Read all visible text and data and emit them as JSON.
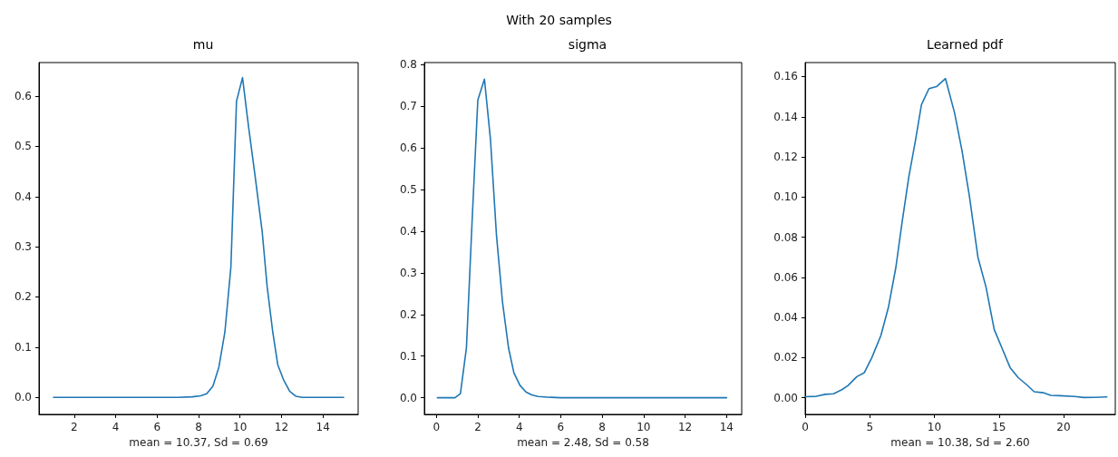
{
  "chart_data": [
    {
      "type": "line",
      "title": "mu",
      "xlabel": "mean = 10.37, Sd = 0.69",
      "annotations": [
        "With 20 samples"
      ],
      "color": "#1f77b4",
      "marker": "none",
      "line_style": "solid",
      "x": [
        1,
        2,
        3,
        4,
        5,
        6,
        7,
        7.7,
        8.1,
        8.39,
        8.69,
        8.98,
        9.27,
        9.56,
        9.83,
        10.12,
        10.41,
        10.73,
        11.07,
        11.31,
        11.58,
        11.82,
        12.1,
        12.4,
        12.7,
        13.0,
        14,
        15
      ],
      "values": [
        0,
        0,
        0,
        0,
        0,
        0,
        0,
        0.001,
        0.003,
        0.007,
        0.022,
        0.06,
        0.13,
        0.26,
        0.59,
        0.637,
        0.54,
        0.44,
        0.33,
        0.22,
        0.13,
        0.065,
        0.035,
        0.012,
        0.002,
        0,
        0,
        0
      ],
      "xlim": [
        0.3,
        15.7
      ],
      "ylim": [
        -0.034,
        0.667
      ],
      "xticks": [
        2,
        4,
        6,
        8,
        10,
        12,
        14
      ],
      "yticks": [
        {
          "value": 0,
          "label": "0.0"
        },
        0.1,
        0.2,
        0.3,
        0.4,
        0.5,
        0.6
      ]
    },
    {
      "type": "line",
      "title": "sigma",
      "xlabel": "mean = 2.48, Sd = 0.58",
      "color": "#1f77b4",
      "marker": "none",
      "line_style": "solid",
      "x": [
        0.05,
        0.9,
        1.16,
        1.45,
        1.72,
        2.0,
        2.32,
        2.61,
        2.9,
        3.19,
        3.48,
        3.74,
        4.03,
        4.32,
        4.6,
        4.9,
        5.5,
        6,
        8,
        10,
        12,
        14
      ],
      "values": [
        0,
        0,
        0.01,
        0.12,
        0.42,
        0.715,
        0.765,
        0.62,
        0.39,
        0.23,
        0.12,
        0.06,
        0.03,
        0.014,
        0.007,
        0.003,
        0.001,
        0,
        0,
        0,
        0,
        0
      ],
      "xlim": [
        -0.58,
        14.73
      ],
      "ylim": [
        -0.04,
        0.805
      ],
      "xticks": [
        0,
        2,
        4,
        6,
        8,
        10,
        12,
        14
      ],
      "yticks": [
        {
          "value": 0,
          "label": "0.0"
        },
        0.1,
        0.2,
        0.3,
        0.4,
        0.5,
        0.6,
        0.7,
        0.8
      ]
    },
    {
      "type": "line",
      "title": "Learned pdf",
      "xlabel": "mean = 10.38, Sd = 2.60",
      "color": "#1f77b4",
      "marker": "none",
      "line_style": "solid",
      "x": [
        0,
        0.86,
        1.56,
        2.2,
        2.84,
        3.3,
        4.0,
        4.58,
        5.16,
        5.86,
        6.44,
        7.02,
        7.49,
        8.02,
        8.53,
        9.0,
        9.58,
        10.16,
        10.86,
        11.56,
        12.14,
        12.72,
        13.37,
        14.0,
        14.63,
        15.28,
        15.86,
        16.49,
        17.14,
        17.72,
        18.42,
        19.0,
        19.7,
        20.86,
        21.56,
        22.37,
        23.35
      ],
      "values": [
        0.0005,
        0.0007,
        0.0017,
        0.002,
        0.004,
        0.006,
        0.0105,
        0.0125,
        0.02,
        0.031,
        0.045,
        0.065,
        0.087,
        0.11,
        0.128,
        0.146,
        0.154,
        0.155,
        0.159,
        0.142,
        0.123,
        0.1,
        0.07,
        0.055,
        0.034,
        0.024,
        0.015,
        0.01,
        0.0065,
        0.003,
        0.0025,
        0.0012,
        0.001,
        0.0006,
        0.0001,
        0.0002,
        0.0004
      ],
      "xlim": [
        0,
        24
      ],
      "ylim": [
        -0.0083,
        0.167
      ],
      "xticks": [
        0,
        5,
        10,
        15,
        20
      ],
      "yticks": [
        {
          "value": 0,
          "label": "0.00"
        },
        {
          "value": 0.02,
          "label": "0.02"
        },
        {
          "value": 0.04,
          "label": "0.04"
        },
        {
          "value": 0.06,
          "label": "0.06"
        },
        {
          "value": 0.08,
          "label": "0.08"
        },
        {
          "value": 0.1,
          "label": "0.10"
        },
        {
          "value": 0.12,
          "label": "0.12"
        },
        {
          "value": 0.14,
          "label": "0.14"
        },
        {
          "value": 0.16,
          "label": "0.16"
        }
      ]
    }
  ]
}
